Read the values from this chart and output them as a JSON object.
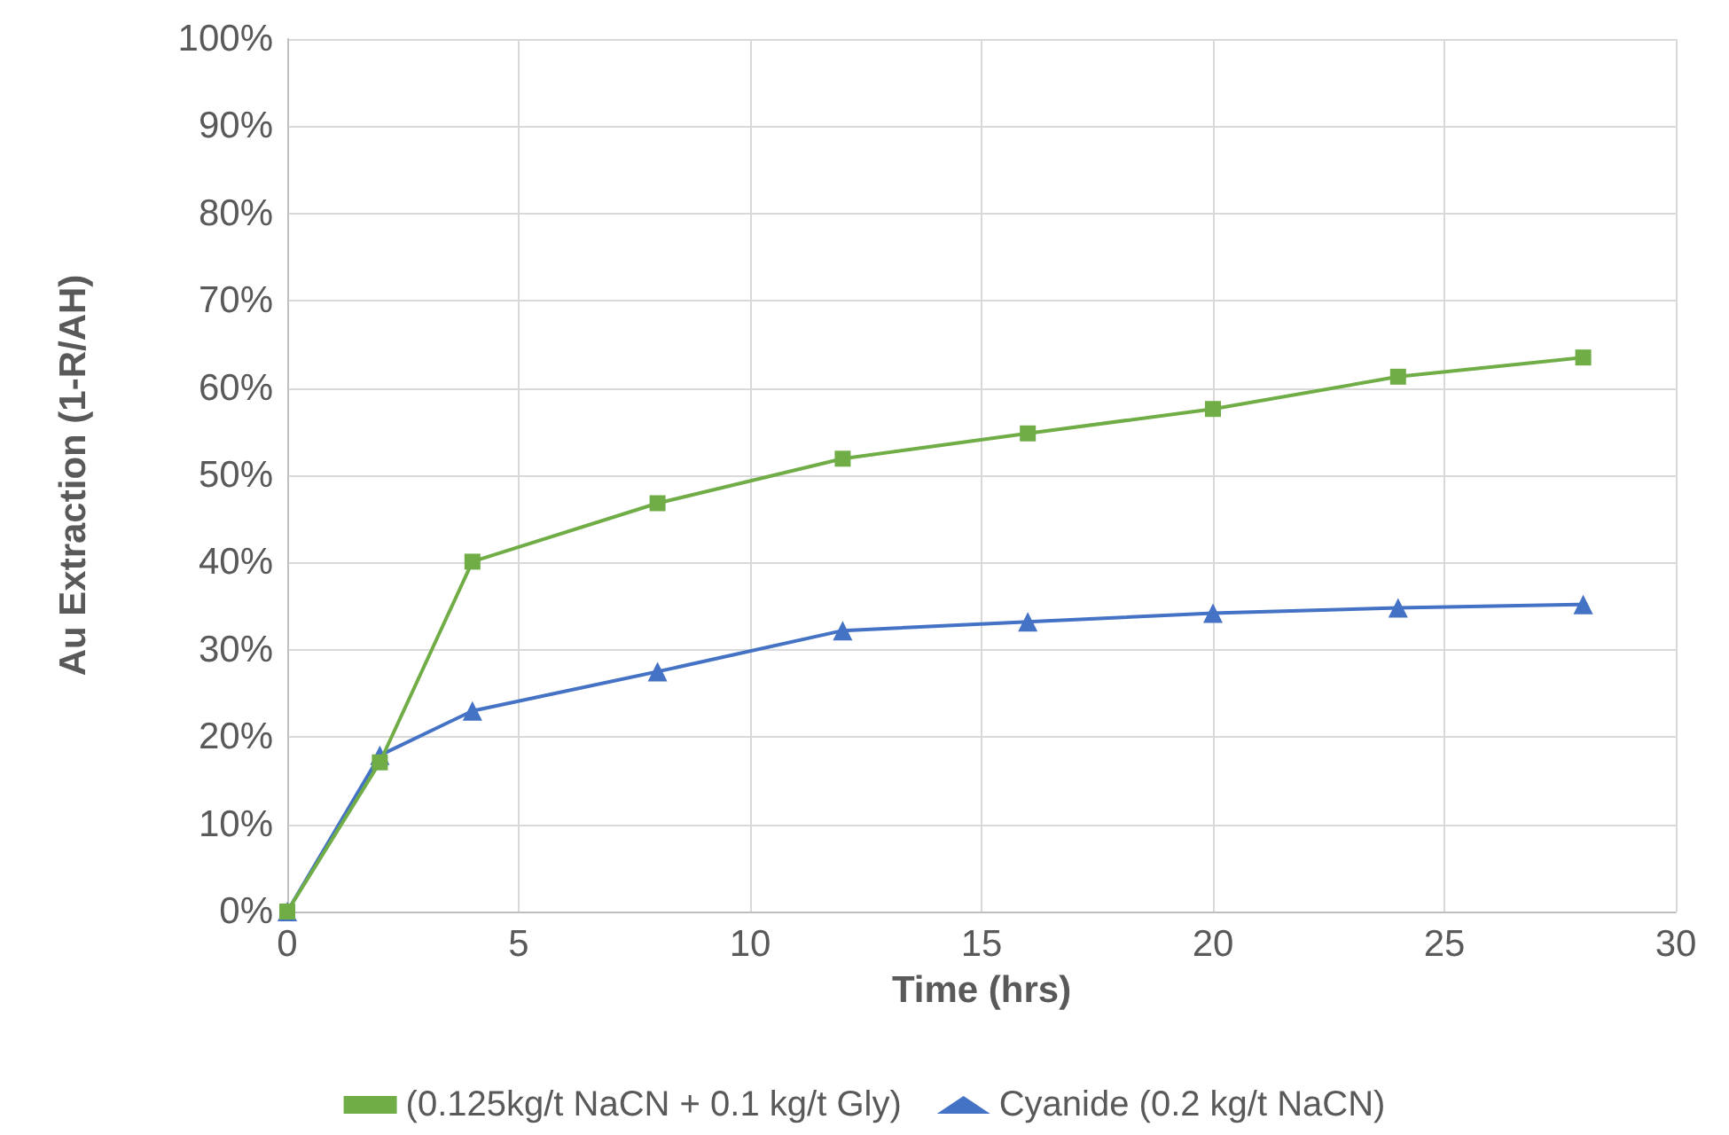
{
  "chart_data": {
    "type": "line",
    "xlabel": "Time (hrs)",
    "ylabel": "Au Extraction (1-R/AH)",
    "x": [
      0,
      2,
      4,
      8,
      12,
      16,
      20,
      24,
      28
    ],
    "series": [
      {
        "name": "(0.125kg/t NaCN + 0.1 kg/t Gly)",
        "color": "#70ad47",
        "marker": "square",
        "values": [
          0,
          17.1,
          40.1,
          46.8,
          51.9,
          54.8,
          57.6,
          61.3,
          63.5
        ]
      },
      {
        "name": "Cyanide (0.2 kg/t NaCN)",
        "color": "#4472c4",
        "marker": "triangle",
        "values": [
          0,
          17.9,
          23,
          27.5,
          32.2,
          33.2,
          34.2,
          34.8,
          35.2
        ]
      }
    ],
    "xlim": [
      0,
      30
    ],
    "xticks": [
      0,
      5,
      10,
      15,
      20,
      25,
      30
    ],
    "ylim": [
      0,
      100
    ],
    "yticks": [
      {
        "value": 0,
        "label": "0%"
      },
      {
        "value": 10,
        "label": "10%"
      },
      {
        "value": 20,
        "label": "20%"
      },
      {
        "value": 30,
        "label": "30%"
      },
      {
        "value": 40,
        "label": "40%"
      },
      {
        "value": 50,
        "label": "50%"
      },
      {
        "value": 60,
        "label": "60%"
      },
      {
        "value": 70,
        "label": "70%"
      },
      {
        "value": 80,
        "label": "80%"
      },
      {
        "value": 90,
        "label": "90%"
      },
      {
        "value": 100,
        "label": "100%"
      }
    ],
    "grid": true,
    "legend": "bottom",
    "line_style": "solid"
  }
}
